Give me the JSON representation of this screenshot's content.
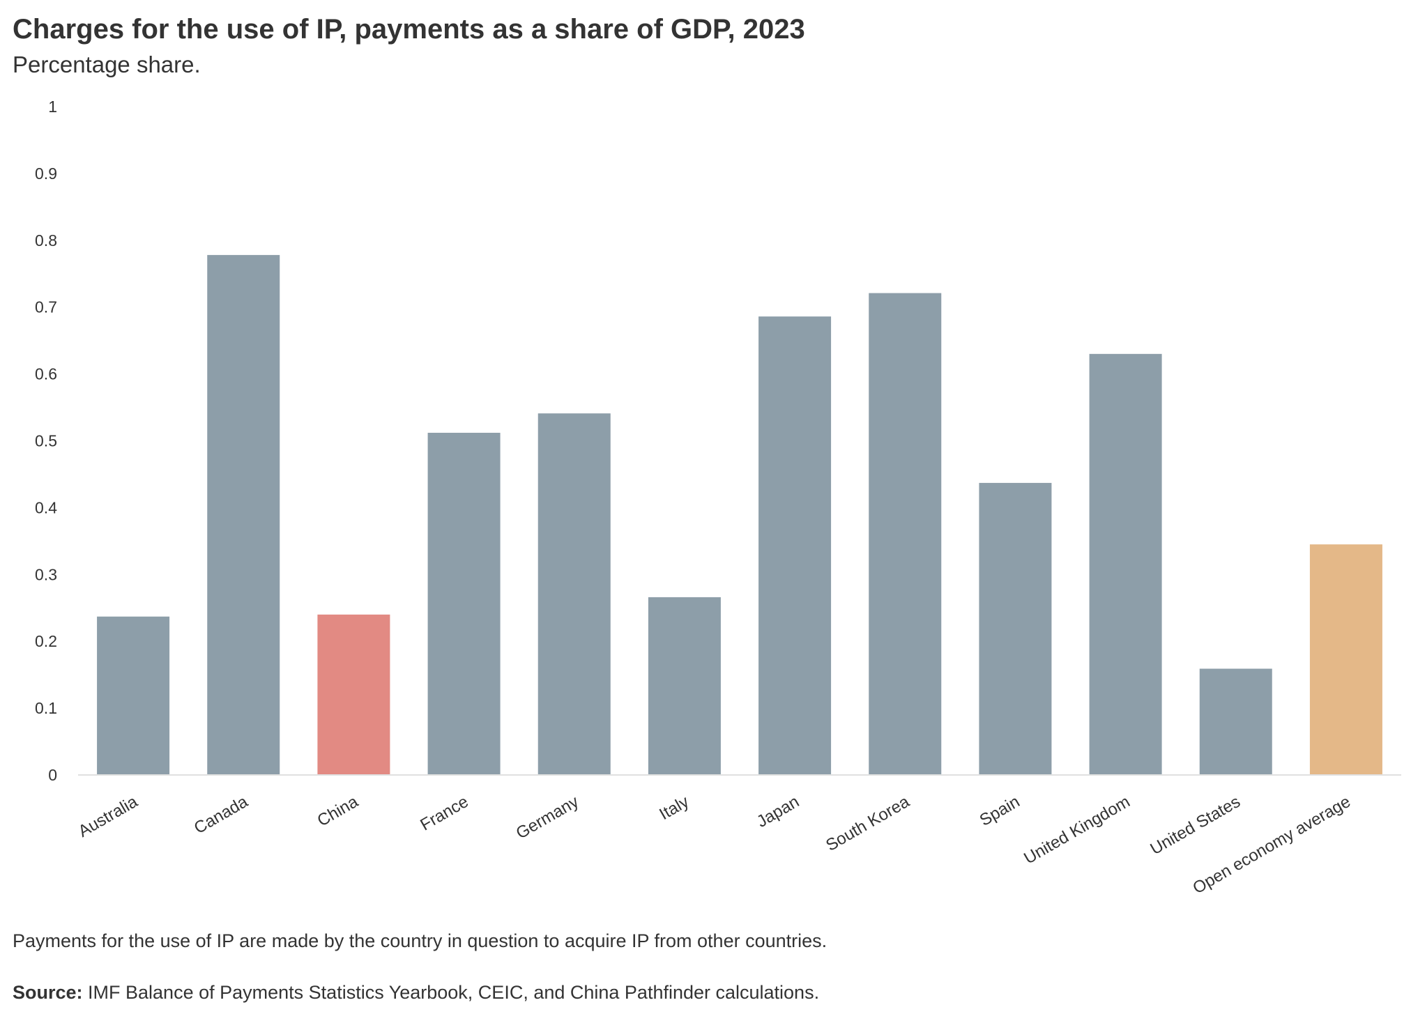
{
  "chart_data": {
    "type": "bar",
    "title": "Charges for the use of IP, payments as a share of GDP, 2023",
    "subtitle": "Percentage share.",
    "xlabel": "",
    "ylabel": "",
    "ylim": [
      0,
      1
    ],
    "yticks": [
      0,
      0.1,
      0.2,
      0.3,
      0.4,
      0.5,
      0.6,
      0.7,
      0.8,
      0.9,
      1
    ],
    "ytick_labels": [
      "0",
      "0.1",
      "0.2",
      "0.3",
      "0.4",
      "0.5",
      "0.6",
      "0.7",
      "0.8",
      "0.9",
      "1"
    ],
    "grid": false,
    "categories": [
      "Australia",
      "Canada",
      "China",
      "France",
      "Germany",
      "Italy",
      "Japan",
      "South Korea",
      "Spain",
      "United Kingdom",
      "United States",
      "Open economy average"
    ],
    "values": [
      0.237,
      0.778,
      0.24,
      0.512,
      0.541,
      0.266,
      0.686,
      0.721,
      0.437,
      0.63,
      0.159,
      0.345
    ],
    "bar_colors": [
      "#8d9ea9",
      "#8d9ea9",
      "#e28a83",
      "#8d9ea9",
      "#8d9ea9",
      "#8d9ea9",
      "#8d9ea9",
      "#8d9ea9",
      "#8d9ea9",
      "#8d9ea9",
      "#8d9ea9",
      "#e4b888"
    ]
  },
  "footer": {
    "note": "Payments for the use of IP are made by the country in question to acquire IP from other countries.",
    "source_label": "Source:",
    "source_text": " IMF Balance of Payments Statistics Yearbook, CEIC, and China Pathfinder calculations."
  },
  "colors": {
    "default_bar": "#8d9ea9",
    "highlight_bar": "#e28a83",
    "average_bar": "#e4b888",
    "text": "#333333",
    "axis_line": "#e0e0e0"
  }
}
